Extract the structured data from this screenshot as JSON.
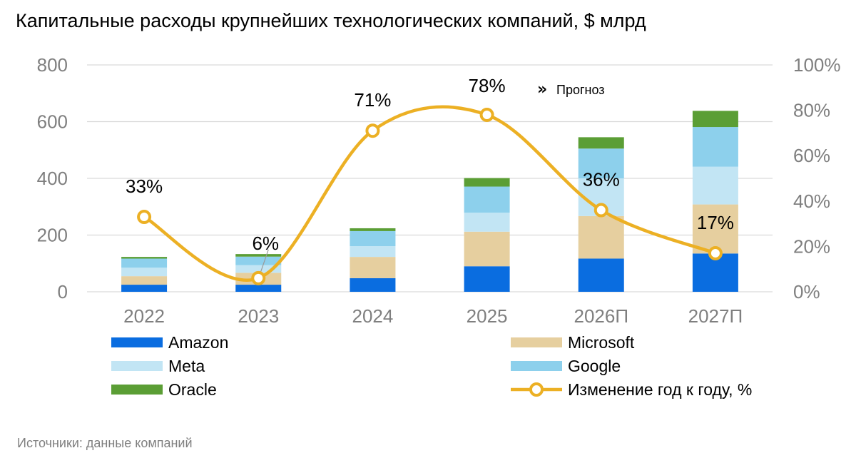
{
  "title": "Капитальные расходы крупнейших технологических компаний, $ млрд",
  "source": "Источники: данные компаний",
  "forecast_label": "Прогноз",
  "forecast_icon": "double-chevron-right-icon",
  "colors": {
    "Amazon": "#0a6de0",
    "Microsoft": "#e6cf9f",
    "Meta": "#c2e5f4",
    "Google": "#8dd0ec",
    "Oracle": "#5b9e35",
    "line": "#ecb024",
    "grid": "#d9d9d9",
    "tick": "#7f7f7f"
  },
  "chart_data": {
    "type": "bar",
    "stacked": true,
    "categories": [
      "2022",
      "2023",
      "2024",
      "2025",
      "2026П",
      "2027П"
    ],
    "series": [
      {
        "name": "Amazon",
        "values": [
          25,
          25,
          48,
          90,
          117,
          135
        ]
      },
      {
        "name": "Microsoft",
        "values": [
          30,
          42,
          75,
          122,
          150,
          173
        ]
      },
      {
        "name": "Meta",
        "values": [
          30,
          27,
          38,
          67,
          133,
          133
        ]
      },
      {
        "name": "Google",
        "values": [
          32,
          30,
          53,
          92,
          105,
          140
        ]
      },
      {
        "name": "Oracle",
        "values": [
          6,
          9,
          10,
          30,
          40,
          57
        ]
      }
    ],
    "line_series": {
      "name": "Изменение год к году, %",
      "axis": "right",
      "values": [
        33,
        6,
        71,
        78,
        36,
        17
      ],
      "labels": [
        "33%",
        "6%",
        "71%",
        "78%",
        "36%",
        "17%"
      ]
    },
    "ylim": [
      0,
      800
    ],
    "yticks": [
      0,
      200,
      400,
      600,
      800
    ],
    "y2lim": [
      0,
      100
    ],
    "y2ticks": [
      "0%",
      "20%",
      "40%",
      "60%",
      "80%",
      "100%"
    ],
    "grid": true,
    "legend_position": "bottom",
    "legend": [
      "Amazon",
      "Microsoft",
      "Meta",
      "Google",
      "Oracle",
      "Изменение год к году, %"
    ]
  }
}
